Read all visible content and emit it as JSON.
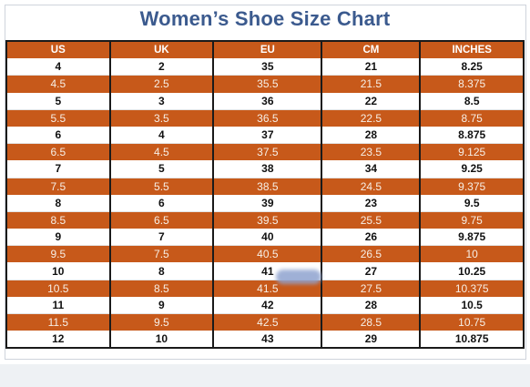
{
  "title": "Women’s Shoe Size Chart",
  "columns": [
    "US",
    "UK",
    "EU",
    "CM",
    "INCHES"
  ],
  "rows": [
    [
      "4",
      "2",
      "35",
      "21",
      "8.25"
    ],
    [
      "4.5",
      "2.5",
      "35.5",
      "21.5",
      "8.375"
    ],
    [
      "5",
      "3",
      "36",
      "22",
      "8.5"
    ],
    [
      "5.5",
      "3.5",
      "36.5",
      "22.5",
      "8.75"
    ],
    [
      "6",
      "4",
      "37",
      "28",
      "8.875"
    ],
    [
      "6.5",
      "4.5",
      "37.5",
      "23.5",
      "9.125"
    ],
    [
      "7",
      "5",
      "38",
      "34",
      "9.25"
    ],
    [
      "7.5",
      "5.5",
      "38.5",
      "24.5",
      "9.375"
    ],
    [
      "8",
      "6",
      "39",
      "23",
      "9.5"
    ],
    [
      "8.5",
      "6.5",
      "39.5",
      "25.5",
      "9.75"
    ],
    [
      "9",
      "7",
      "40",
      "26",
      "9.875"
    ],
    [
      "9.5",
      "7.5",
      "40.5",
      "26.5",
      "10"
    ],
    [
      "10",
      "8",
      "41",
      "27",
      "10.25"
    ],
    [
      "10.5",
      "8.5",
      "41.5",
      "27.5",
      "10.375"
    ],
    [
      "11",
      "9",
      "42",
      "28",
      "10.5"
    ],
    [
      "11.5",
      "9.5",
      "42.5",
      "28.5",
      "10.75"
    ],
    [
      "12",
      "10",
      "43",
      "29",
      "10.875"
    ]
  ],
  "colors": {
    "header_band": "#c7591a",
    "title": "#3b5a8e",
    "border": "#1a1a1a"
  }
}
